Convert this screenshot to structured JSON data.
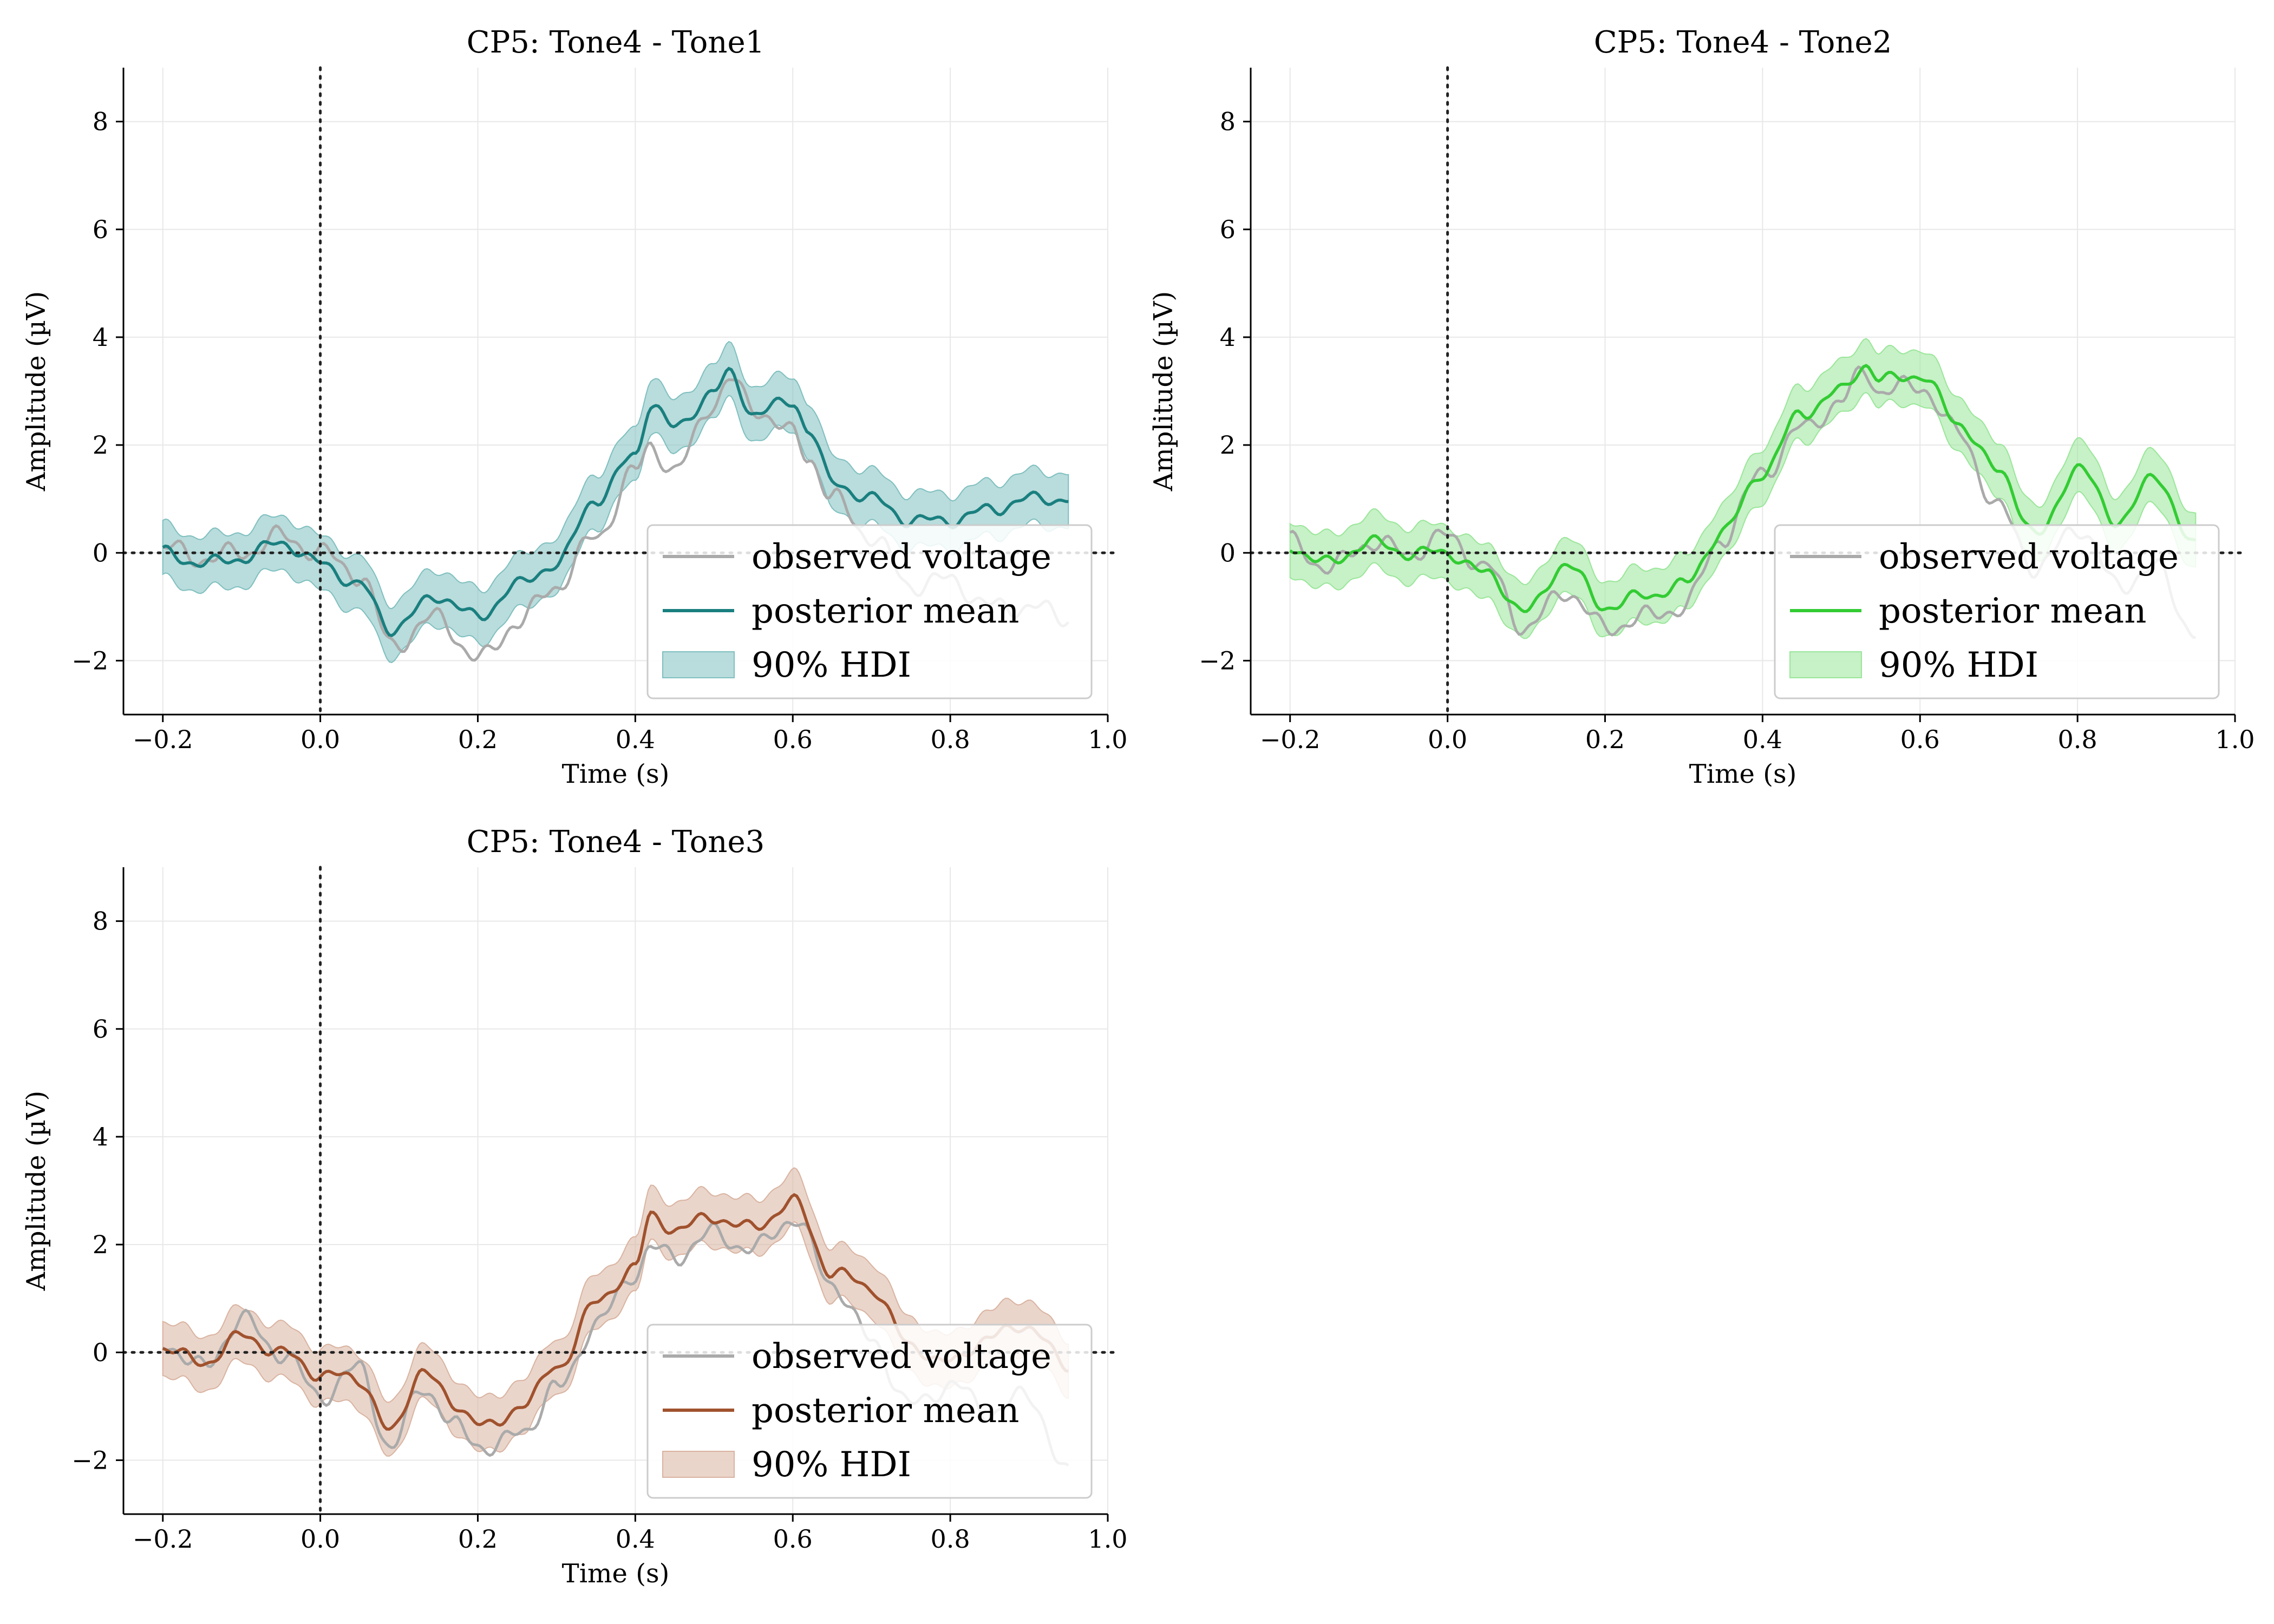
{
  "chart_data": [
    {
      "type": "line",
      "title": "CP5: Tone4 - Tone1",
      "xlabel": "Time (s)",
      "ylabel": "Amplitude (µV)",
      "xlim": [
        -0.25,
        1.0
      ],
      "ylim": [
        -3,
        9
      ],
      "xticks": [
        -0.2,
        0.0,
        0.2,
        0.4,
        0.6,
        0.8,
        1.0
      ],
      "xtick_labels": [
        "−0.2",
        "0.0",
        "0.2",
        "0.4",
        "0.6",
        "0.8",
        "1.0"
      ],
      "yticks": [
        -2,
        0,
        2,
        4,
        6,
        8
      ],
      "ytick_labels": [
        "−2",
        "0",
        "2",
        "4",
        "6",
        "8"
      ],
      "grid": true,
      "legend_position": "lower-right",
      "legend": [
        "observed voltage",
        "posterior mean",
        "90% HDI"
      ],
      "color": "#1a7f7f",
      "band_color": "#7fbfbf",
      "observed_color": "#aaaaaa",
      "x": [
        -0.2,
        -0.15,
        -0.1,
        -0.05,
        0.0,
        0.05,
        0.09,
        0.15,
        0.2,
        0.25,
        0.3,
        0.35,
        0.4,
        0.42,
        0.45,
        0.5,
        0.52,
        0.55,
        0.6,
        0.62,
        0.65,
        0.7,
        0.75,
        0.8,
        0.85,
        0.9,
        0.95
      ],
      "series": [
        {
          "name": "observed voltage",
          "values": [
            0.1,
            -0.1,
            0.0,
            0.3,
            0.0,
            -0.4,
            -1.7,
            -1.2,
            -2.0,
            -1.3,
            -0.6,
            0.3,
            1.5,
            2.0,
            1.5,
            2.8,
            3.2,
            2.7,
            2.2,
            1.8,
            1.0,
            0.3,
            -0.6,
            -0.5,
            -1.0,
            -1.0,
            -1.2
          ]
        },
        {
          "name": "posterior mean",
          "values": [
            0.0,
            -0.2,
            -0.1,
            0.2,
            -0.2,
            -0.6,
            -1.4,
            -0.8,
            -1.2,
            -0.6,
            -0.2,
            1.0,
            1.8,
            2.8,
            2.3,
            3.0,
            3.3,
            2.6,
            2.8,
            2.3,
            1.3,
            1.0,
            0.6,
            0.6,
            0.8,
            1.0,
            1.0
          ]
        }
      ],
      "hdi_width": 0.5
    },
    {
      "type": "line",
      "title": "CP5: Tone4 - Tone2",
      "xlabel": "Time (s)",
      "ylabel": "Amplitude (µV)",
      "xlim": [
        -0.25,
        1.0
      ],
      "ylim": [
        -3,
        9
      ],
      "xticks": [
        -0.2,
        0.0,
        0.2,
        0.4,
        0.6,
        0.8,
        1.0
      ],
      "xtick_labels": [
        "−0.2",
        "0.0",
        "0.2",
        "0.4",
        "0.6",
        "0.8",
        "1.0"
      ],
      "yticks": [
        -2,
        0,
        2,
        4,
        6,
        8
      ],
      "ytick_labels": [
        "−2",
        "0",
        "2",
        "4",
        "6",
        "8"
      ],
      "grid": true,
      "legend_position": "lower-right",
      "legend": [
        "observed voltage",
        "posterior mean",
        "90% HDI"
      ],
      "color": "#33cc33",
      "band_color": "#99e699",
      "observed_color": "#aaaaaa",
      "x": [
        -0.2,
        -0.15,
        -0.1,
        -0.05,
        0.0,
        0.05,
        0.1,
        0.15,
        0.2,
        0.25,
        0.3,
        0.35,
        0.4,
        0.45,
        0.5,
        0.53,
        0.55,
        0.6,
        0.65,
        0.7,
        0.75,
        0.8,
        0.85,
        0.9,
        0.95
      ],
      "series": [
        {
          "name": "observed voltage",
          "values": [
            0.2,
            -0.3,
            0.2,
            0.0,
            0.3,
            -0.3,
            -1.4,
            -0.7,
            -1.4,
            -1.2,
            -1.0,
            0.3,
            1.5,
            2.3,
            2.8,
            3.4,
            3.0,
            3.1,
            2.2,
            0.8,
            -0.3,
            0.5,
            -0.6,
            -0.3,
            -1.5
          ]
        },
        {
          "name": "posterior mean",
          "values": [
            0.1,
            -0.2,
            0.2,
            0.0,
            0.0,
            -0.4,
            -1.1,
            -0.2,
            -1.0,
            -0.8,
            -0.6,
            0.4,
            1.5,
            2.6,
            3.0,
            3.5,
            3.2,
            3.3,
            2.4,
            1.5,
            0.3,
            1.6,
            0.6,
            1.4,
            0.1
          ]
        }
      ],
      "hdi_width": 0.5
    },
    {
      "type": "line",
      "title": "CP5: Tone4 - Tone3",
      "xlabel": "Time (s)",
      "ylabel": "Amplitude (µV)",
      "xlim": [
        -0.25,
        1.0
      ],
      "ylim": [
        -3,
        9
      ],
      "xticks": [
        -0.2,
        0.0,
        0.2,
        0.4,
        0.6,
        0.8,
        1.0
      ],
      "xtick_labels": [
        "−0.2",
        "0.0",
        "0.2",
        "0.4",
        "0.6",
        "0.8",
        "1.0"
      ],
      "yticks": [
        -2,
        0,
        2,
        4,
        6,
        8
      ],
      "ytick_labels": [
        "−2",
        "0",
        "2",
        "4",
        "6",
        "8"
      ],
      "grid": true,
      "legend_position": "lower-right",
      "legend": [
        "observed voltage",
        "posterior mean",
        "90% HDI"
      ],
      "color": "#a0522d",
      "band_color": "#d9b3a0",
      "observed_color": "#aaaaaa",
      "x": [
        -0.2,
        -0.15,
        -0.1,
        -0.05,
        0.0,
        0.05,
        0.09,
        0.13,
        0.17,
        0.22,
        0.26,
        0.3,
        0.35,
        0.4,
        0.42,
        0.45,
        0.5,
        0.55,
        0.6,
        0.65,
        0.7,
        0.75,
        0.8,
        0.85,
        0.9,
        0.95
      ],
      "series": [
        {
          "name": "observed voltage",
          "values": [
            0.2,
            -0.3,
            0.6,
            0.0,
            -0.8,
            -0.3,
            -1.8,
            -0.6,
            -1.4,
            -1.8,
            -1.4,
            -0.7,
            0.5,
            1.5,
            1.9,
            1.8,
            2.2,
            1.9,
            2.5,
            1.3,
            0.2,
            -1.0,
            -0.6,
            -1.1,
            -0.8,
            -2.3
          ]
        },
        {
          "name": "posterior mean",
          "values": [
            0.1,
            -0.2,
            0.3,
            0.0,
            -0.4,
            -0.5,
            -1.5,
            -0.3,
            -1.0,
            -1.4,
            -0.9,
            -0.3,
            0.9,
            1.6,
            2.5,
            2.3,
            2.5,
            2.3,
            2.8,
            1.5,
            1.2,
            0.1,
            -0.2,
            0.3,
            0.5,
            -0.3
          ]
        }
      ],
      "hdi_width": 0.5
    }
  ]
}
